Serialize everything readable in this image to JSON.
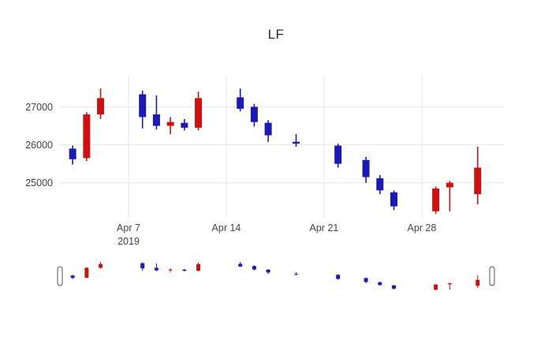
{
  "title": "LF",
  "chart_data": {
    "type": "candlestick",
    "title": "LF",
    "xlabel": "",
    "ylabel": "",
    "grid": true,
    "legend": false,
    "ylim": [
      24080,
      27840
    ],
    "y_ticks": [
      25000,
      26000,
      27000
    ],
    "x_ticks": [
      {
        "date": "2019-04-07",
        "label": "Apr 7",
        "sublabel": "2019"
      },
      {
        "date": "2019-04-14",
        "label": "Apr 14"
      },
      {
        "date": "2019-04-21",
        "label": "Apr 21"
      },
      {
        "date": "2019-04-28",
        "label": "Apr 28"
      }
    ],
    "colors": {
      "increasing": "#cc1111",
      "decreasing": "#1b1bb3"
    },
    "rangeslider_visible": true,
    "candles": [
      {
        "date": "2019-04-03",
        "open": 25900,
        "high": 25980,
        "low": 25480,
        "close": 25620
      },
      {
        "date": "2019-04-04",
        "open": 25650,
        "high": 26860,
        "low": 25570,
        "close": 26800
      },
      {
        "date": "2019-04-05",
        "open": 26800,
        "high": 27480,
        "low": 26680,
        "close": 27230
      },
      {
        "date": "2019-04-08",
        "open": 27330,
        "high": 27430,
        "low": 26430,
        "close": 26730
      },
      {
        "date": "2019-04-09",
        "open": 26800,
        "high": 27300,
        "low": 26400,
        "close": 26500
      },
      {
        "date": "2019-04-10",
        "open": 26500,
        "high": 26730,
        "low": 26280,
        "close": 26600
      },
      {
        "date": "2019-04-11",
        "open": 26580,
        "high": 26680,
        "low": 26380,
        "close": 26450
      },
      {
        "date": "2019-04-12",
        "open": 26450,
        "high": 27400,
        "low": 26380,
        "close": 27230
      },
      {
        "date": "2019-04-15",
        "open": 27250,
        "high": 27480,
        "low": 26880,
        "close": 26950
      },
      {
        "date": "2019-04-16",
        "open": 27000,
        "high": 27080,
        "low": 26480,
        "close": 26600
      },
      {
        "date": "2019-04-17",
        "open": 26580,
        "high": 26650,
        "low": 26080,
        "close": 26250
      },
      {
        "date": "2019-04-19",
        "open": 26080,
        "high": 26280,
        "low": 25950,
        "close": 26030
      },
      {
        "date": "2019-04-22",
        "open": 25980,
        "high": 26030,
        "low": 25400,
        "close": 25500
      },
      {
        "date": "2019-04-24",
        "open": 25600,
        "high": 25680,
        "low": 25000,
        "close": 25150
      },
      {
        "date": "2019-04-25",
        "open": 25120,
        "high": 25200,
        "low": 24700,
        "close": 24800
      },
      {
        "date": "2019-04-26",
        "open": 24750,
        "high": 24800,
        "low": 24280,
        "close": 24380
      },
      {
        "date": "2019-04-29",
        "open": 24250,
        "high": 24900,
        "low": 24180,
        "close": 24850
      },
      {
        "date": "2019-04-30",
        "open": 24880,
        "high": 25050,
        "low": 24250,
        "close": 25000
      },
      {
        "date": "2019-05-02",
        "open": 24700,
        "high": 25950,
        "low": 24430,
        "close": 25400
      }
    ]
  }
}
